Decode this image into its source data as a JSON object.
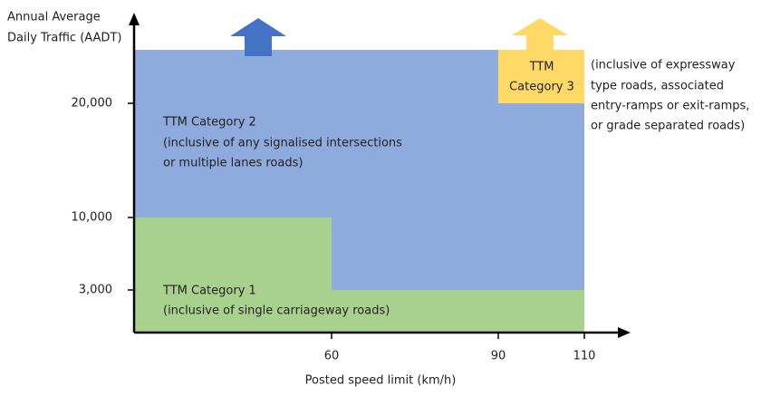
{
  "axes": {
    "y_label": [
      "Annual Average",
      "Daily Traffic (AADT)"
    ],
    "x_label": "Posted speed limit (km/h)",
    "y_ticks": [
      "20,000",
      "10,000",
      "3,000"
    ],
    "x_ticks": [
      "60",
      "90",
      "110"
    ]
  },
  "regions": [
    {
      "title": "TTM Category 1",
      "description": [
        "(inclusive of single carriageway roads)"
      ]
    },
    {
      "title": "TTM Category 2",
      "description": [
        "(inclusive of any signalised intersections",
        "or multiple lanes roads)"
      ]
    },
    {
      "title": [
        "TTM",
        "Category 3"
      ],
      "description": [
        "(inclusive of expressway",
        "type roads, associated",
        "entry-ramps or exit-ramps,",
        "or grade separated roads)"
      ]
    }
  ]
}
